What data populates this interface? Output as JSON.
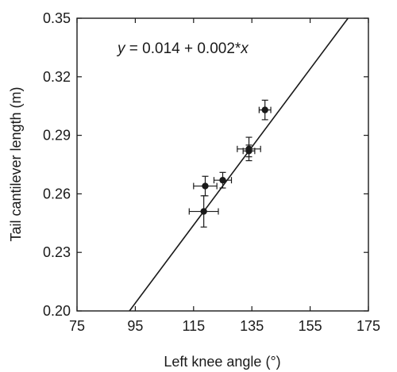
{
  "chart_data": {
    "type": "scatter",
    "title": "",
    "xlabel": "Left knee angle (°)",
    "ylabel": "Tail cantilever length (m)",
    "xlim": [
      75,
      175
    ],
    "ylim": [
      0.2,
      0.35
    ],
    "xticks": [
      75,
      95,
      115,
      135,
      155,
      175
    ],
    "yticks": [
      0.2,
      0.23,
      0.26,
      0.29,
      0.32,
      0.35
    ],
    "xtick_labels": [
      "75",
      "95",
      "115",
      "135",
      "155",
      "175"
    ],
    "ytick_labels": [
      "0.20",
      "0.23",
      "0.26",
      "0.29",
      "0.32",
      "0.35"
    ],
    "grid": false,
    "points": [
      {
        "x": 139.5,
        "y": 0.303,
        "xerr": 2,
        "yerr": 0.005
      },
      {
        "x": 134,
        "y": 0.282,
        "xerr": 2,
        "yerr": 0.003
      },
      {
        "x": 134,
        "y": 0.283,
        "xerr": 4,
        "yerr": 0.006
      },
      {
        "x": 125,
        "y": 0.267,
        "xerr": 3,
        "yerr": 0.004
      },
      {
        "x": 119,
        "y": 0.264,
        "xerr": 4,
        "yerr": 0.005
      },
      {
        "x": 118.5,
        "y": 0.251,
        "xerr": 5,
        "yerr": 0.008
      }
    ],
    "fit_line": {
      "intercept": 0.014,
      "slope": 0.002
    },
    "annotation": {
      "var_y": "y",
      "middle": " = 0.014 + 0.002*",
      "var_x": "x"
    },
    "color": "#1a1a1a"
  }
}
